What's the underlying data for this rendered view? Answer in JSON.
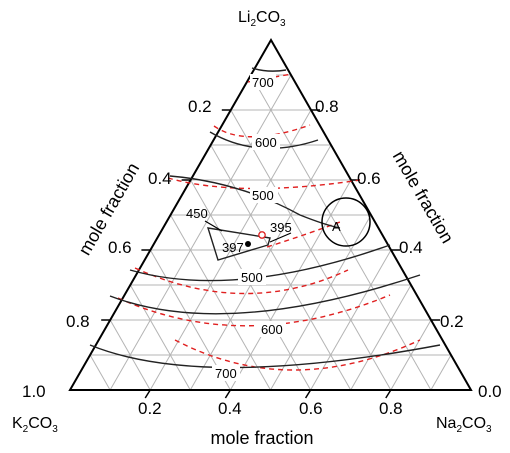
{
  "components": {
    "top": {
      "base": "Li",
      "sub1": "2",
      "mid": "CO",
      "sub2": "3"
    },
    "left": {
      "base": "K",
      "sub1": "2",
      "mid": "CO",
      "sub2": "3"
    },
    "right": {
      "base": "Na",
      "sub1": "2",
      "mid": "CO",
      "sub2": "3"
    }
  },
  "axes": {
    "left_label": "mole fraction",
    "right_label": "mole fraction",
    "bottom_label": "mole fraction",
    "left_ticks": [
      "0.2",
      "0.4",
      "0.6",
      "0.8",
      "1.0"
    ],
    "right_ticks": [
      "0.8",
      "0.6",
      "0.4",
      "0.2",
      "0.0"
    ],
    "bottom_ticks": [
      "0.2",
      "0.4",
      "0.6",
      "0.8"
    ]
  },
  "isotherms": {
    "i700_top": "700",
    "i600_top": "600",
    "i500_top": "500",
    "i450": "450",
    "i395": "395",
    "i397": "397",
    "i500_bottom": "500",
    "i600_bottom": "600",
    "i700_bottom": "700"
  },
  "region_label": "A",
  "colors": {
    "experimental": "#222222",
    "calculated": "#e02020",
    "grid": "#b4b4b4"
  }
}
